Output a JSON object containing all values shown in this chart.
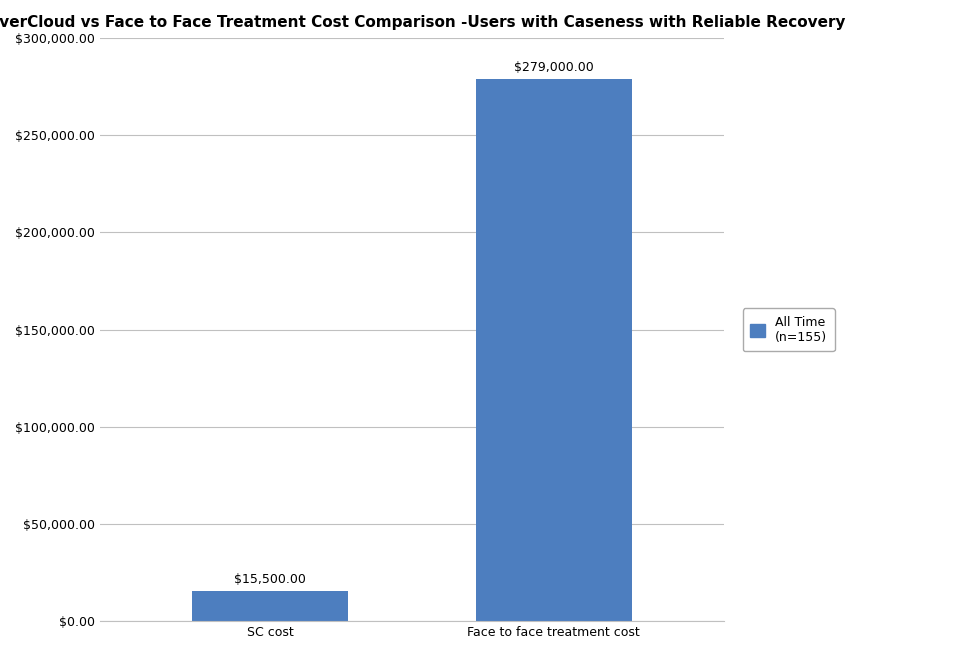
{
  "title": "SilverCloud vs Face to Face Treatment Cost Comparison -Users with Caseness with Reliable Recovery",
  "categories": [
    "SC cost",
    "Face to face treatment cost"
  ],
  "values": [
    15500,
    279000
  ],
  "bar_color": "#4d7ebf",
  "ylim": [
    0,
    300000
  ],
  "yticks": [
    0,
    50000,
    100000,
    150000,
    200000,
    250000,
    300000
  ],
  "bar_labels": [
    "$15,500.00",
    "$279,000.00"
  ],
  "legend_label": "All Time\n(n=155)",
  "title_fontsize": 11,
  "label_fontsize": 9,
  "tick_fontsize": 9,
  "background_color": "#ffffff",
  "grid_color": "#c0c0c0",
  "bar_width": 0.55,
  "figsize": [
    9.8,
    6.54
  ]
}
